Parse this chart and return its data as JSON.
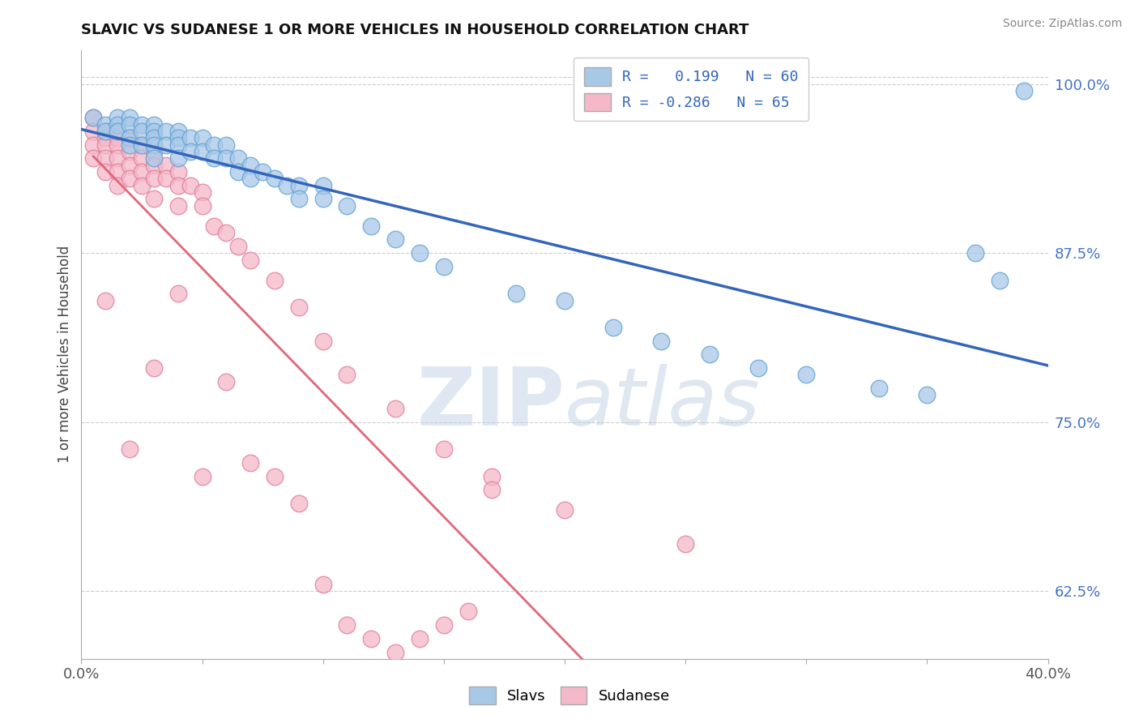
{
  "title": "SLAVIC VS SUDANESE 1 OR MORE VEHICLES IN HOUSEHOLD CORRELATION CHART",
  "ylabel": "1 or more Vehicles in Household",
  "source": "Source: ZipAtlas.com",
  "xmin": 0.0,
  "xmax": 0.4,
  "ymin": 0.575,
  "ymax": 1.025,
  "yticks": [
    0.625,
    0.75,
    0.875,
    1.0
  ],
  "ytick_labels": [
    "62.5%",
    "75.0%",
    "87.5%",
    "100.0%"
  ],
  "xticks": [
    0.0,
    0.05,
    0.1,
    0.15,
    0.2,
    0.25,
    0.3,
    0.35,
    0.4
  ],
  "xtick_labels": [
    "0.0%",
    "",
    "",
    "",
    "",
    "",
    "",
    "",
    "40.0%"
  ],
  "slavs_R": 0.199,
  "slavs_N": 60,
  "sudanese_R": -0.286,
  "sudanese_N": 65,
  "slavs_color": "#a8c8e8",
  "slavs_edge_color": "#5a9fd4",
  "sudanese_color": "#f4b8c8",
  "sudanese_edge_color": "#e07898",
  "trend_slavs_color": "#3366bb",
  "trend_sudanese_color": "#e06878",
  "watermark_zip": "ZIP",
  "watermark_atlas": "atlas",
  "slavs_x": [
    0.005,
    0.01,
    0.01,
    0.015,
    0.015,
    0.015,
    0.02,
    0.02,
    0.02,
    0.02,
    0.025,
    0.025,
    0.025,
    0.03,
    0.03,
    0.03,
    0.03,
    0.03,
    0.035,
    0.035,
    0.04,
    0.04,
    0.04,
    0.04,
    0.045,
    0.045,
    0.05,
    0.05,
    0.055,
    0.055,
    0.06,
    0.06,
    0.065,
    0.065,
    0.07,
    0.07,
    0.075,
    0.08,
    0.085,
    0.09,
    0.09,
    0.1,
    0.1,
    0.11,
    0.12,
    0.13,
    0.14,
    0.15,
    0.18,
    0.2,
    0.22,
    0.24,
    0.26,
    0.28,
    0.3,
    0.33,
    0.35,
    0.37,
    0.38,
    0.39
  ],
  "slavs_y": [
    0.975,
    0.97,
    0.965,
    0.975,
    0.97,
    0.965,
    0.975,
    0.97,
    0.96,
    0.955,
    0.97,
    0.965,
    0.955,
    0.97,
    0.965,
    0.96,
    0.955,
    0.945,
    0.965,
    0.955,
    0.965,
    0.96,
    0.955,
    0.945,
    0.96,
    0.95,
    0.96,
    0.95,
    0.955,
    0.945,
    0.955,
    0.945,
    0.945,
    0.935,
    0.94,
    0.93,
    0.935,
    0.93,
    0.925,
    0.925,
    0.915,
    0.925,
    0.915,
    0.91,
    0.895,
    0.885,
    0.875,
    0.865,
    0.845,
    0.84,
    0.82,
    0.81,
    0.8,
    0.79,
    0.785,
    0.775,
    0.77,
    0.875,
    0.855,
    0.995
  ],
  "sudanese_x": [
    0.005,
    0.005,
    0.005,
    0.005,
    0.01,
    0.01,
    0.01,
    0.01,
    0.01,
    0.015,
    0.015,
    0.015,
    0.015,
    0.015,
    0.015,
    0.02,
    0.02,
    0.02,
    0.02,
    0.025,
    0.025,
    0.025,
    0.025,
    0.03,
    0.03,
    0.03,
    0.03,
    0.035,
    0.035,
    0.04,
    0.04,
    0.04,
    0.045,
    0.05,
    0.05,
    0.055,
    0.06,
    0.065,
    0.07,
    0.08,
    0.09,
    0.1,
    0.11,
    0.13,
    0.15,
    0.17,
    0.2,
    0.25,
    0.01,
    0.02,
    0.03,
    0.04,
    0.05,
    0.06,
    0.07,
    0.08,
    0.09,
    0.1,
    0.11,
    0.12,
    0.13,
    0.14,
    0.15,
    0.16,
    0.17
  ],
  "sudanese_y": [
    0.975,
    0.965,
    0.955,
    0.945,
    0.965,
    0.96,
    0.955,
    0.945,
    0.935,
    0.965,
    0.96,
    0.955,
    0.945,
    0.935,
    0.925,
    0.96,
    0.95,
    0.94,
    0.93,
    0.955,
    0.945,
    0.935,
    0.925,
    0.95,
    0.94,
    0.93,
    0.915,
    0.94,
    0.93,
    0.935,
    0.925,
    0.91,
    0.925,
    0.92,
    0.91,
    0.895,
    0.89,
    0.88,
    0.87,
    0.855,
    0.835,
    0.81,
    0.785,
    0.76,
    0.73,
    0.71,
    0.685,
    0.66,
    0.84,
    0.73,
    0.79,
    0.845,
    0.71,
    0.78,
    0.72,
    0.71,
    0.69,
    0.63,
    0.6,
    0.59,
    0.58,
    0.59,
    0.6,
    0.61,
    0.7
  ]
}
